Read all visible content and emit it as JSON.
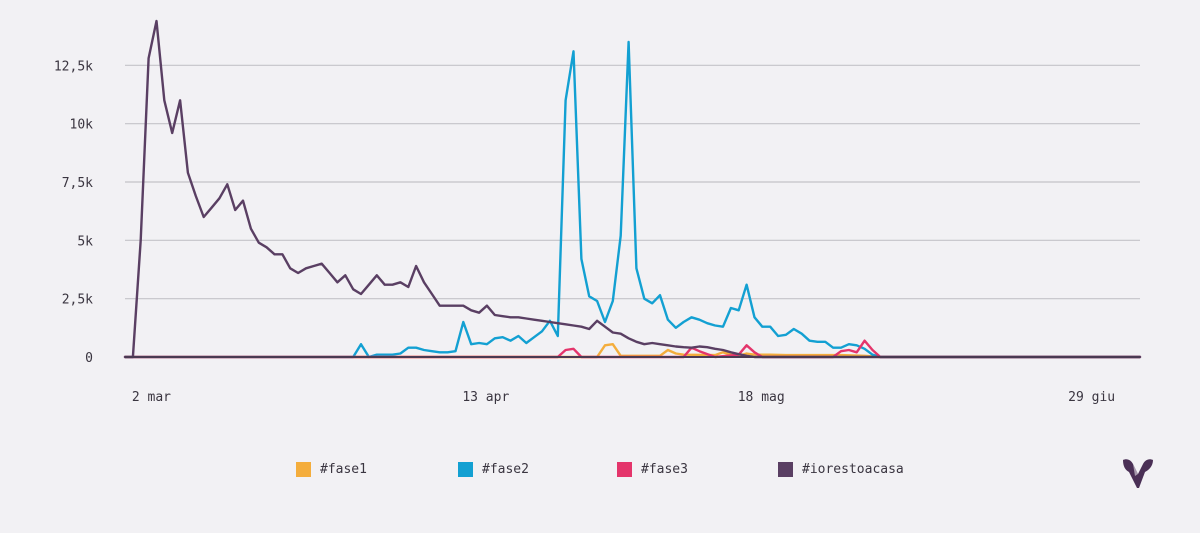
{
  "colors": {
    "background": "#f2f1f4",
    "grid": "#c4c3c8",
    "fase1": "#f4ad3c",
    "fase2": "#13a0d2",
    "fase3": "#e4356b",
    "iorestoacasa": "#5a3f63",
    "logo": "#4a2f55"
  },
  "logo": {
    "icon": "brand-logo-icon"
  },
  "chart_data": {
    "type": "line",
    "x_start": "2020-03-01",
    "x_end": "2020-07-08",
    "x_ticks": [
      {
        "date": "2020-03-02",
        "label": "2 mar"
      },
      {
        "date": "2020-04-13",
        "label": "13 apr"
      },
      {
        "date": "2020-05-18",
        "label": "18 mag"
      },
      {
        "date": "2020-06-29",
        "label": "29 giu"
      }
    ],
    "y_ticks": [
      {
        "value": 0,
        "label": "0"
      },
      {
        "value": 2500,
        "label": "2,5k"
      },
      {
        "value": 5000,
        "label": "5k"
      },
      {
        "value": 7500,
        "label": "7,5k"
      },
      {
        "value": 10000,
        "label": "10k"
      },
      {
        "value": 12500,
        "label": "12,5k"
      }
    ],
    "ylim": [
      0,
      15000
    ],
    "grid": true,
    "legend": "bottom",
    "series": [
      {
        "name": "#fase1",
        "points": [
          [
            "2020-03-01",
            0
          ],
          [
            "2020-04-30",
            0
          ],
          [
            "2020-05-01",
            500
          ],
          [
            "2020-05-02",
            550
          ],
          [
            "2020-05-03",
            50
          ],
          [
            "2020-05-08",
            50
          ],
          [
            "2020-05-09",
            300
          ],
          [
            "2020-05-10",
            150
          ],
          [
            "2020-05-11",
            100
          ],
          [
            "2020-05-15",
            80
          ],
          [
            "2020-05-16",
            200
          ],
          [
            "2020-05-17",
            100
          ],
          [
            "2020-05-18",
            50
          ],
          [
            "2020-05-19",
            150
          ],
          [
            "2020-05-20",
            100
          ],
          [
            "2020-05-22",
            100
          ],
          [
            "2020-05-24",
            80
          ],
          [
            "2020-05-31",
            80
          ],
          [
            "2020-06-03",
            50
          ],
          [
            "2020-06-05",
            0
          ],
          [
            "2020-07-08",
            0
          ]
        ]
      },
      {
        "name": "#fase2",
        "points": [
          [
            "2020-03-01",
            0
          ],
          [
            "2020-03-30",
            0
          ],
          [
            "2020-03-31",
            550
          ],
          [
            "2020-04-01",
            0
          ],
          [
            "2020-04-02",
            100
          ],
          [
            "2020-04-04",
            100
          ],
          [
            "2020-04-05",
            150
          ],
          [
            "2020-04-06",
            400
          ],
          [
            "2020-04-07",
            400
          ],
          [
            "2020-04-08",
            300
          ],
          [
            "2020-04-09",
            250
          ],
          [
            "2020-04-10",
            200
          ],
          [
            "2020-04-11",
            200
          ],
          [
            "2020-04-12",
            250
          ],
          [
            "2020-04-13",
            1500
          ],
          [
            "2020-04-14",
            550
          ],
          [
            "2020-04-15",
            600
          ],
          [
            "2020-04-16",
            550
          ],
          [
            "2020-04-17",
            800
          ],
          [
            "2020-04-18",
            850
          ],
          [
            "2020-04-19",
            700
          ],
          [
            "2020-04-20",
            900
          ],
          [
            "2020-04-21",
            600
          ],
          [
            "2020-04-22",
            850
          ],
          [
            "2020-04-23",
            1100
          ],
          [
            "2020-04-24",
            1550
          ],
          [
            "2020-04-25",
            900
          ],
          [
            "2020-04-26",
            11000
          ],
          [
            "2020-04-27",
            13100
          ],
          [
            "2020-04-28",
            4200
          ],
          [
            "2020-04-29",
            2600
          ],
          [
            "2020-04-30",
            2400
          ],
          [
            "2020-05-01",
            1500
          ],
          [
            "2020-05-02",
            2400
          ],
          [
            "2020-05-03",
            5200
          ],
          [
            "2020-05-04",
            13500
          ],
          [
            "2020-05-05",
            3800
          ],
          [
            "2020-05-06",
            2500
          ],
          [
            "2020-05-07",
            2300
          ],
          [
            "2020-05-08",
            2650
          ],
          [
            "2020-05-09",
            1600
          ],
          [
            "2020-05-10",
            1250
          ],
          [
            "2020-05-11",
            1500
          ],
          [
            "2020-05-12",
            1700
          ],
          [
            "2020-05-13",
            1600
          ],
          [
            "2020-05-14",
            1450
          ],
          [
            "2020-05-15",
            1350
          ],
          [
            "2020-05-16",
            1300
          ],
          [
            "2020-05-17",
            2100
          ],
          [
            "2020-05-18",
            2000
          ],
          [
            "2020-05-19",
            3100
          ],
          [
            "2020-05-20",
            1700
          ],
          [
            "2020-05-21",
            1300
          ],
          [
            "2020-05-22",
            1300
          ],
          [
            "2020-05-23",
            900
          ],
          [
            "2020-05-24",
            950
          ],
          [
            "2020-05-25",
            1200
          ],
          [
            "2020-05-26",
            1000
          ],
          [
            "2020-05-27",
            700
          ],
          [
            "2020-05-28",
            650
          ],
          [
            "2020-05-29",
            650
          ],
          [
            "2020-05-30",
            400
          ],
          [
            "2020-05-31",
            400
          ],
          [
            "2020-06-01",
            550
          ],
          [
            "2020-06-02",
            500
          ],
          [
            "2020-06-03",
            350
          ],
          [
            "2020-06-04",
            100
          ],
          [
            "2020-06-05",
            0
          ],
          [
            "2020-07-08",
            0
          ]
        ]
      },
      {
        "name": "#fase3",
        "points": [
          [
            "2020-03-01",
            0
          ],
          [
            "2020-04-25",
            0
          ],
          [
            "2020-04-26",
            300
          ],
          [
            "2020-04-27",
            350
          ],
          [
            "2020-04-28",
            0
          ],
          [
            "2020-05-11",
            0
          ],
          [
            "2020-05-12",
            400
          ],
          [
            "2020-05-13",
            250
          ],
          [
            "2020-05-15",
            0
          ],
          [
            "2020-05-18",
            100
          ],
          [
            "2020-05-19",
            500
          ],
          [
            "2020-05-20",
            200
          ],
          [
            "2020-05-21",
            0
          ],
          [
            "2020-05-30",
            0
          ],
          [
            "2020-05-31",
            250
          ],
          [
            "2020-06-01",
            300
          ],
          [
            "2020-06-02",
            200
          ],
          [
            "2020-06-03",
            700
          ],
          [
            "2020-06-04",
            300
          ],
          [
            "2020-06-05",
            0
          ],
          [
            "2020-07-08",
            0
          ]
        ]
      },
      {
        "name": "#iorestoacasa",
        "points": [
          [
            "2020-03-01",
            0
          ],
          [
            "2020-03-02",
            0
          ],
          [
            "2020-03-03",
            5000
          ],
          [
            "2020-03-04",
            12800
          ],
          [
            "2020-03-05",
            14400
          ],
          [
            "2020-03-06",
            11000
          ],
          [
            "2020-03-07",
            9600
          ],
          [
            "2020-03-08",
            11000
          ],
          [
            "2020-03-09",
            7900
          ],
          [
            "2020-03-10",
            6900
          ],
          [
            "2020-03-11",
            6000
          ],
          [
            "2020-03-12",
            6400
          ],
          [
            "2020-03-13",
            6800
          ],
          [
            "2020-03-14",
            7400
          ],
          [
            "2020-03-15",
            6300
          ],
          [
            "2020-03-16",
            6700
          ],
          [
            "2020-03-17",
            5500
          ],
          [
            "2020-03-18",
            4900
          ],
          [
            "2020-03-19",
            4700
          ],
          [
            "2020-03-20",
            4400
          ],
          [
            "2020-03-21",
            4400
          ],
          [
            "2020-03-22",
            3800
          ],
          [
            "2020-03-23",
            3600
          ],
          [
            "2020-03-24",
            3800
          ],
          [
            "2020-03-25",
            3900
          ],
          [
            "2020-03-26",
            4000
          ],
          [
            "2020-03-27",
            3600
          ],
          [
            "2020-03-28",
            3200
          ],
          [
            "2020-03-29",
            3500
          ],
          [
            "2020-03-30",
            2900
          ],
          [
            "2020-03-31",
            2700
          ],
          [
            "2020-04-01",
            3100
          ],
          [
            "2020-04-02",
            3500
          ],
          [
            "2020-04-03",
            3100
          ],
          [
            "2020-04-04",
            3100
          ],
          [
            "2020-04-05",
            3200
          ],
          [
            "2020-04-06",
            3000
          ],
          [
            "2020-04-07",
            3900
          ],
          [
            "2020-04-08",
            3200
          ],
          [
            "2020-04-09",
            2700
          ],
          [
            "2020-04-10",
            2200
          ],
          [
            "2020-04-11",
            2200
          ],
          [
            "2020-04-12",
            2200
          ],
          [
            "2020-04-13",
            2200
          ],
          [
            "2020-04-14",
            2000
          ],
          [
            "2020-04-15",
            1900
          ],
          [
            "2020-04-16",
            2200
          ],
          [
            "2020-04-17",
            1800
          ],
          [
            "2020-04-18",
            1750
          ],
          [
            "2020-04-19",
            1700
          ],
          [
            "2020-04-20",
            1700
          ],
          [
            "2020-04-21",
            1650
          ],
          [
            "2020-04-22",
            1600
          ],
          [
            "2020-04-23",
            1550
          ],
          [
            "2020-04-24",
            1500
          ],
          [
            "2020-04-25",
            1450
          ],
          [
            "2020-04-26",
            1400
          ],
          [
            "2020-04-27",
            1350
          ],
          [
            "2020-04-28",
            1300
          ],
          [
            "2020-04-29",
            1200
          ],
          [
            "2020-04-30",
            1550
          ],
          [
            "2020-05-01",
            1300
          ],
          [
            "2020-05-02",
            1050
          ],
          [
            "2020-05-03",
            1000
          ],
          [
            "2020-05-04",
            800
          ],
          [
            "2020-05-05",
            650
          ],
          [
            "2020-05-06",
            550
          ],
          [
            "2020-05-07",
            600
          ],
          [
            "2020-05-08",
            550
          ],
          [
            "2020-05-09",
            500
          ],
          [
            "2020-05-10",
            450
          ],
          [
            "2020-05-11",
            420
          ],
          [
            "2020-05-12",
            400
          ],
          [
            "2020-05-13",
            450
          ],
          [
            "2020-05-14",
            420
          ],
          [
            "2020-05-15",
            350
          ],
          [
            "2020-05-16",
            300
          ],
          [
            "2020-05-17",
            200
          ],
          [
            "2020-05-18",
            120
          ],
          [
            "2020-05-19",
            50
          ],
          [
            "2020-05-20",
            0
          ],
          [
            "2020-07-08",
            0
          ]
        ]
      }
    ]
  }
}
